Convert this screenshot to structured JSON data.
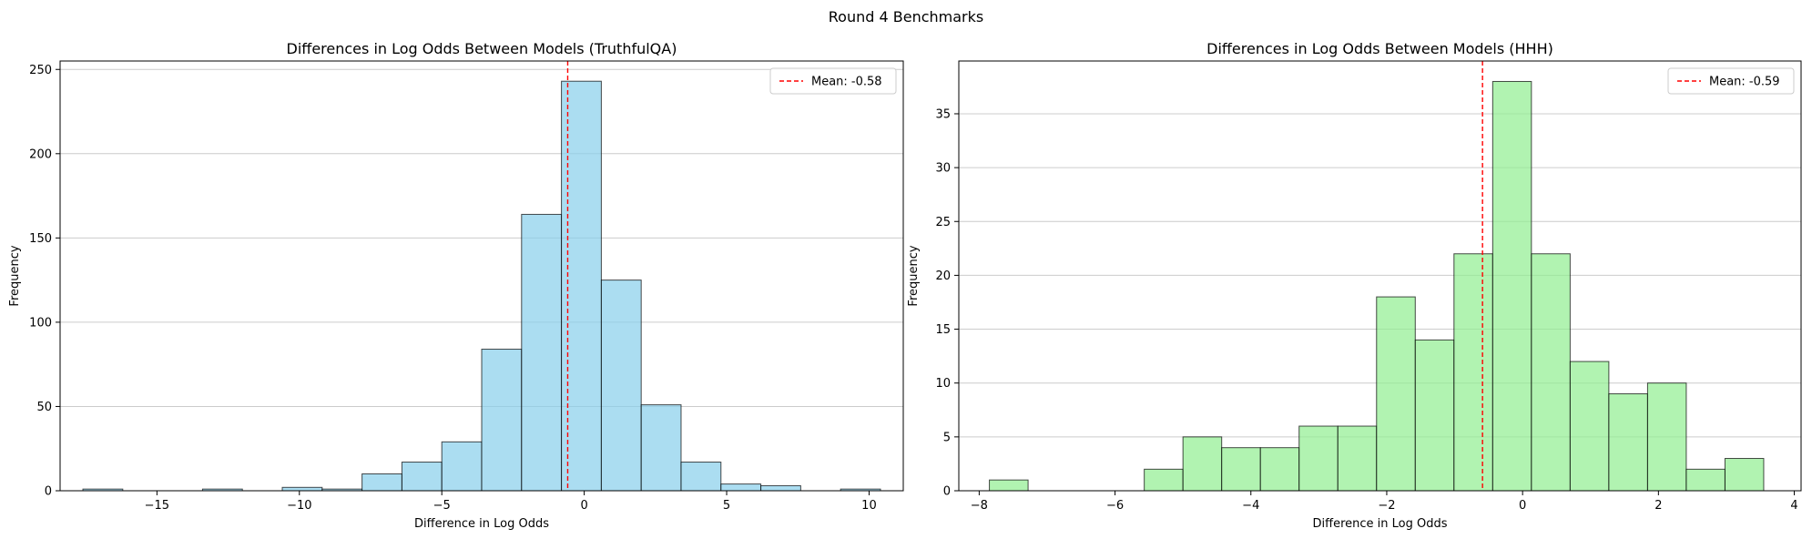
{
  "figure": {
    "suptitle": "Round 4 Benchmarks"
  },
  "chart_data": [
    {
      "type": "bar",
      "title": "Differences in Log Odds Between Models (TruthfulQA)",
      "xlabel": "Difference in Log Odds",
      "ylabel": "Frequency",
      "xlim": [
        -18.4,
        11.2
      ],
      "ylim": [
        0,
        255
      ],
      "xticks": [
        -15,
        -10,
        -5,
        0,
        5,
        10
      ],
      "yticks": [
        0,
        50,
        100,
        150,
        200,
        250
      ],
      "grid": "y",
      "bar_color": "#87CEEB",
      "bin_edges": [
        -17.6,
        -16.2,
        -14.8,
        -13.4,
        -12.0,
        -10.6,
        -9.2,
        -7.8,
        -6.4,
        -5.0,
        -3.6,
        -2.2,
        -0.8,
        0.6,
        2.0,
        3.4,
        4.8,
        6.2,
        7.6,
        9.0,
        10.4
      ],
      "values": [
        1,
        0,
        0,
        1,
        0,
        2,
        1,
        10,
        17,
        29,
        84,
        164,
        243,
        125,
        51,
        17,
        4,
        3,
        0,
        1
      ],
      "mean": -0.58,
      "mean_color": "#ff0000",
      "legend": {
        "label": "Mean: -0.58",
        "position": "top-right"
      }
    },
    {
      "type": "bar",
      "title": "Differences in Log Odds Between Models (HHH)",
      "xlabel": "Difference in Log Odds",
      "ylabel": "Frequency",
      "xlim": [
        -8.3,
        4.1
      ],
      "ylim": [
        0,
        39.9
      ],
      "xticks": [
        -8,
        -6,
        -4,
        -2,
        0,
        2,
        4
      ],
      "yticks": [
        0,
        5,
        10,
        15,
        20,
        25,
        30,
        35
      ],
      "grid": "y",
      "bar_color": "#90EE90",
      "bin_edges": [
        -7.85,
        -7.28,
        -6.71,
        -6.14,
        -5.57,
        -5.0,
        -4.43,
        -3.86,
        -3.29,
        -2.72,
        -2.15,
        -1.58,
        -1.01,
        -0.44,
        0.13,
        0.7,
        1.27,
        1.84,
        2.41,
        2.98,
        3.55
      ],
      "values": [
        1,
        0,
        0,
        0,
        2,
        5,
        4,
        4,
        6,
        6,
        18,
        14,
        22,
        38,
        22,
        12,
        9,
        10,
        2,
        3
      ],
      "mean": -0.59,
      "mean_color": "#ff0000",
      "legend": {
        "label": "Mean: -0.59",
        "position": "top-right"
      }
    }
  ]
}
